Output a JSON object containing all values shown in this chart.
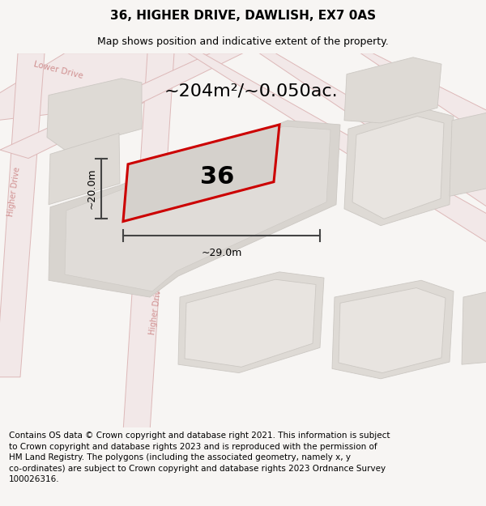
{
  "title": "36, HIGHER DRIVE, DAWLISH, EX7 0AS",
  "subtitle": "Map shows position and indicative extent of the property.",
  "area_text": "~204m²/~0.050ac.",
  "number_label": "36",
  "dim_width": "~29.0m",
  "dim_height": "~20.0m",
  "footer_text": "Contains OS data © Crown copyright and database right 2021. This information is subject\nto Crown copyright and database rights 2023 and is reproduced with the permission of\nHM Land Registry. The polygons (including the associated geometry, namely x, y\nco-ordinates) are subject to Crown copyright and database rights 2023 Ordnance Survey\n100026316.",
  "bg_color": "#f7f5f3",
  "map_bg": "#eeebe7",
  "road_fill": "#f2e8e8",
  "road_edge": "#ddb8b8",
  "block_fill": "#dedad5",
  "block_edge": "#ccc8c3",
  "block_inner_fill": "#e8e4e0",
  "prop_fill": "#d5d1cc",
  "prop_edge": "#cc0000",
  "road_label_color": "#d09090",
  "dim_color": "#444444",
  "title_fontsize": 11,
  "subtitle_fontsize": 9,
  "area_fontsize": 16,
  "number_fontsize": 22,
  "dim_fontsize": 9,
  "footer_fontsize": 7.5
}
